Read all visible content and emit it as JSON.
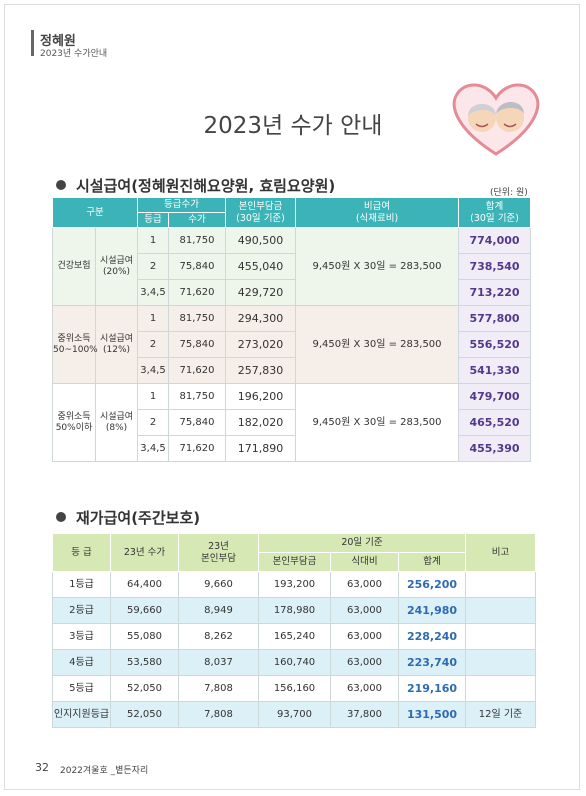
{
  "header": {
    "brand": "정혜원",
    "subtitle": "2023년 수가안내"
  },
  "title": "2023년 수가 안내",
  "facility": {
    "heading": "시설급여(정혜원진해요양원, 효림요양원)",
    "unit": "(단위: 원)",
    "columns": {
      "category": "구분",
      "grade_fee": "등급수가",
      "grade": "등급",
      "fee": "수가",
      "copay": "본인부담금\n(30일 기준)",
      "nonpay": "비급여\n(식재료비)",
      "total": "합계\n(30일 기준)"
    },
    "groups": [
      {
        "label": "건강보험",
        "type": "시설급여\n(20%)",
        "nonpay": "9,450원 X 30일 = 283,500",
        "rows": [
          [
            "1",
            "81,750",
            "490,500",
            "774,000"
          ],
          [
            "2",
            "75,840",
            "455,040",
            "738,540"
          ],
          [
            "3,4,5",
            "71,620",
            "429,720",
            "713,220"
          ]
        ]
      },
      {
        "label": "중위소득\n50~100%",
        "type": "시설급여\n(12%)",
        "nonpay": "9,450원 X 30일 = 283,500",
        "rows": [
          [
            "1",
            "81,750",
            "294,300",
            "577,800"
          ],
          [
            "2",
            "75,840",
            "273,020",
            "556,520"
          ],
          [
            "3,4,5",
            "71,620",
            "257,830",
            "541,330"
          ]
        ]
      },
      {
        "label": "중위소득\n50%이하",
        "type": "시설급여\n(8%)",
        "nonpay": "9,450원 X 30일 = 283,500",
        "rows": [
          [
            "1",
            "81,750",
            "196,200",
            "479,700"
          ],
          [
            "2",
            "75,840",
            "182,020",
            "465,520"
          ],
          [
            "3,4,5",
            "71,620",
            "171,890",
            "455,390"
          ]
        ]
      }
    ]
  },
  "daycare": {
    "heading": "재가급여(주간보호)",
    "columns": {
      "grade": "등 급",
      "fee": "23년 수가",
      "copay": "23년\n본인부담",
      "basis": "20일 기준",
      "copay20": "본인부담금",
      "meal": "식대비",
      "total": "합계",
      "note": "비고"
    },
    "rows": [
      {
        "cells": [
          "1등급",
          "64,400",
          "9,660",
          "193,200",
          "63,000",
          "256,200"
        ]
      },
      {
        "cells": [
          "2등급",
          "59,660",
          "8,949",
          "178,980",
          "63,000",
          "241,980"
        ]
      },
      {
        "cells": [
          "3등급",
          "55,080",
          "8,262",
          "165,240",
          "63,000",
          "228,240"
        ]
      },
      {
        "cells": [
          "4등급",
          "53,580",
          "8,037",
          "160,740",
          "63,000",
          "223,740"
        ]
      },
      {
        "cells": [
          "5등급",
          "52,050",
          "7,808",
          "156,160",
          "63,000",
          "219,160"
        ]
      },
      {
        "cells": [
          "인지지원등급",
          "52,050",
          "7,808",
          "93,700",
          "37,800",
          "131,500"
        ],
        "note": "12일 기준"
      }
    ]
  },
  "footer": {
    "page": "32",
    "issue": "2022겨울호 _볕든자리"
  }
}
